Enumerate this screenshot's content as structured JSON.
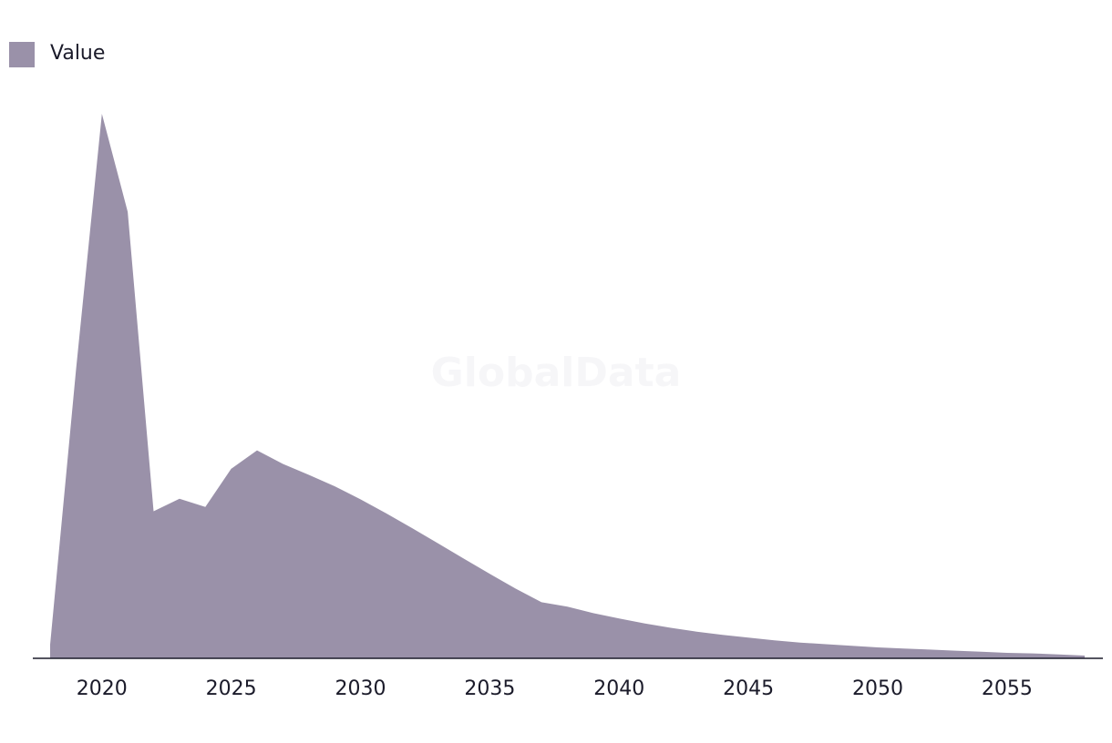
{
  "chart_data": {
    "type": "area",
    "title": "",
    "xlabel": "",
    "ylabel": "",
    "watermark": "GlobalData",
    "legend": {
      "position": "top-left"
    },
    "grid": false,
    "xlim": [
      2018,
      2058
    ],
    "ylim": [
      0,
      100
    ],
    "x_ticks": [
      2020,
      2025,
      2030,
      2035,
      2040,
      2045,
      2050,
      2055
    ],
    "series": [
      {
        "name": "Value",
        "color": "#9a91a9",
        "x": [
          2018,
          2019,
          2020,
          2021,
          2022,
          2023,
          2024,
          2025,
          2026,
          2027,
          2028,
          2029,
          2030,
          2031,
          2032,
          2033,
          2034,
          2035,
          2036,
          2037,
          2038,
          2039,
          2040,
          2041,
          2042,
          2043,
          2044,
          2045,
          2046,
          2047,
          2048,
          2049,
          2050,
          2051,
          2052,
          2053,
          2054,
          2055,
          2056,
          2057,
          2058
        ],
        "values": [
          2.5,
          53,
          100,
          82,
          27,
          29.3,
          27.8,
          34.8,
          38.2,
          35.7,
          33.7,
          31.6,
          29.2,
          26.6,
          23.9,
          21.1,
          18.3,
          15.5,
          12.8,
          10.3,
          9.5,
          8.3,
          7.3,
          6.4,
          5.6,
          4.9,
          4.3,
          3.8,
          3.3,
          2.9,
          2.6,
          2.3,
          2.0,
          1.8,
          1.6,
          1.4,
          1.2,
          1.0,
          0.9,
          0.7,
          0.5
        ]
      }
    ]
  }
}
